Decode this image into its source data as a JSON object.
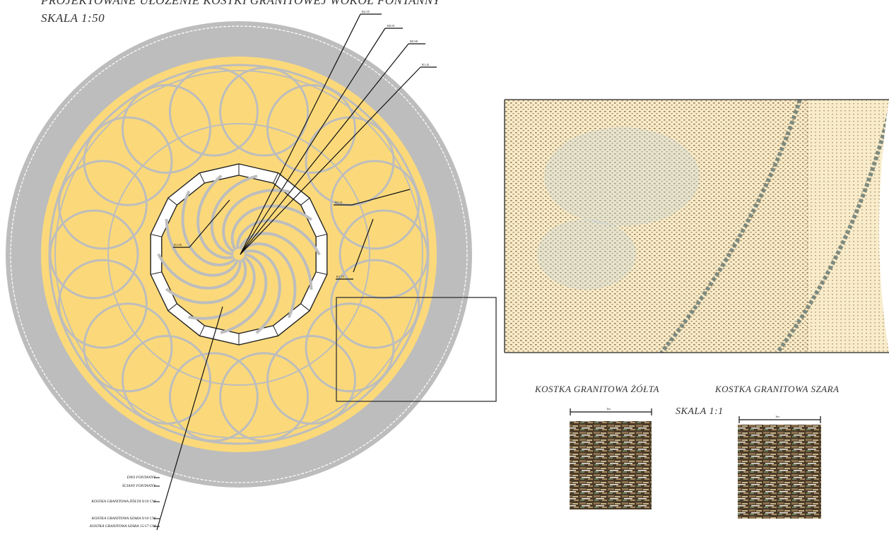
{
  "title": "PROJEKTOWANE UŁOŻENIE KOSTKI GRANITOWEJ WOKÓŁ FONTANNY",
  "scale_main": "SKALA 1:50",
  "swatches": {
    "yellow_label": "KOSTKA GRANITOWA ŻÓŁTA",
    "gray_label": "KOSTKA GRANITOWA SZARA",
    "scale_label": "SKALA 1:1",
    "dim_yellow": "1m",
    "dim_gray": "1m"
  },
  "dimensions": [
    "R2.55",
    "R0.81",
    "R0.98",
    "R1.41",
    "R2.21",
    "R1.79",
    "R1.08"
  ],
  "legend": [
    "DNO FONTANNY",
    "ŚCIANY FONTANNY",
    "KOSTKA GRANITOWA ŻÓŁTA 9/10 CM",
    "KOSTKA GRANITOWA SZARA 9/10 CM",
    "KOSTKA GRANITOWA SZARA 15/17 CM"
  ],
  "colors": {
    "yellow": "#fbd97a",
    "gray": "#bdbdbd",
    "cream": "#f8eccb",
    "line": "#111111"
  }
}
